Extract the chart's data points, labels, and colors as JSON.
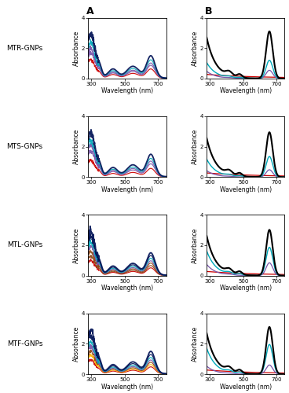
{
  "row_labels": [
    "MTR-GNPs",
    "MTS-GNPs",
    "MTL-GNPs",
    "MTF-GNPs"
  ],
  "col_labels_bold": [
    "A",
    "B"
  ],
  "xlabel": "Wavelength (nm)",
  "ylabel": "Absorbance",
  "xlim": [
    280,
    750
  ],
  "ylim": [
    0.0,
    4.0
  ],
  "yticks": [
    0.0,
    2.0,
    4.0
  ],
  "xticks": [
    300,
    500,
    700
  ],
  "background": "#ffffff",
  "xrd_colors_row0": [
    "#cc0000",
    "#7755aa",
    "#7755aa",
    "#00aabb",
    "#001155"
  ],
  "xrd_colors_row1": [
    "#cc0000",
    "#7755aa",
    "#7755aa",
    "#00aabb",
    "#001155"
  ],
  "xrd_colors_row2": [
    "#cc0000",
    "#8B4513",
    "#8B4513",
    "#7755aa",
    "#00aabb",
    "#001155",
    "#001155"
  ],
  "xrd_colors_row3": [
    "#cc0000",
    "#FFB300",
    "#8B4513",
    "#7755aa",
    "#00aabb",
    "#001155",
    "#001155"
  ],
  "ftir_colors_row0": [
    "#cc0000",
    "#7755aa",
    "#00aabb",
    "#000000"
  ],
  "ftir_colors_row1": [
    "#cc0000",
    "#7755aa",
    "#00aabb",
    "#000000"
  ],
  "ftir_colors_row2": [
    "#cc0000",
    "#7755aa",
    "#00aabb",
    "#000000"
  ],
  "ftir_colors_row3": [
    "#cc0000",
    "#7755aa",
    "#00aabb",
    "#000000"
  ]
}
